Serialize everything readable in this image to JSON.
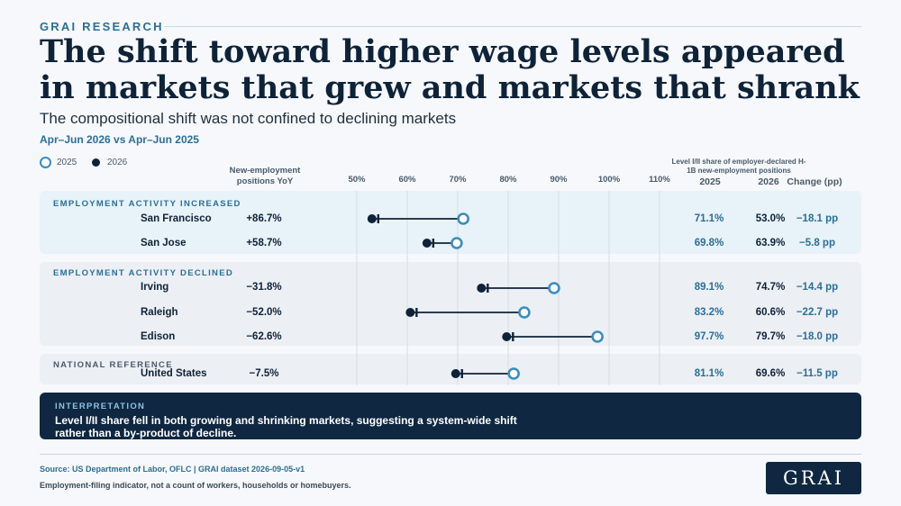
{
  "header": {
    "eyebrow": "GRAI RESEARCH",
    "title": "The shift toward higher wage levels appeared in markets that grew and markets that shrank",
    "subtitle": "The compositional shift was not confined to declining markets",
    "period": "Apr–Jun 2026 vs Apr–Jun 2025"
  },
  "legend": {
    "a": "2025",
    "b": "2026"
  },
  "columns": {
    "yoy": "New-employment positions YoY",
    "share_group": "Level I/II share of employer-declared H-1B new-employment positions",
    "v2025": "2025",
    "v2026": "2026",
    "change": "Change (pp)"
  },
  "sections": {
    "increased": "EMPLOYMENT ACTIVITY INCREASED",
    "declined": "EMPLOYMENT ACTIVITY DECLINED",
    "national": "NATIONAL REFERENCE"
  },
  "rows": [
    {
      "city": "San Francisco",
      "yoy": "+86.7%",
      "v2025": "71.1%",
      "v2026": "53.0%",
      "change": "−18.1 pp"
    },
    {
      "city": "San Jose",
      "yoy": "+58.7%",
      "v2025": "69.8%",
      "v2026": "63.9%",
      "change": "−5.8 pp"
    },
    {
      "city": "Irving",
      "yoy": "−31.8%",
      "v2025": "89.1%",
      "v2026": "74.7%",
      "change": "−14.4 pp"
    },
    {
      "city": "Raleigh",
      "yoy": "−52.0%",
      "v2025": "83.2%",
      "v2026": "60.6%",
      "change": "−22.7 pp"
    },
    {
      "city": "Edison",
      "yoy": "−62.6%",
      "v2025": "97.7%",
      "v2026": "79.7%",
      "change": "−18.0 pp"
    },
    {
      "city": "United States",
      "yoy": "−7.5%",
      "v2025": "81.1%",
      "v2026": "69.6%",
      "change": "−11.5 pp"
    }
  ],
  "interpretation": {
    "label": "INTERPRETATION",
    "text": "Level I/II share fell in both growing and shrinking markets, suggesting a system-wide shift rather than a by-product of decline."
  },
  "footer": {
    "source": "Source: US Department of Labor, OFLC | GRAI dataset 2026-09-05-v1",
    "note": "Employment-filing indicator, not a count of workers, households or homebuyers.",
    "logo": "GRAI"
  },
  "colors": {
    "y2025": "#3a8dbf",
    "y2026": "#0e2238",
    "accent": "#2a6f97"
  },
  "chart_data": {
    "type": "dumbbell",
    "x_ticks": [
      "50%",
      "60%",
      "70%",
      "80%",
      "90%",
      "100%",
      "110%"
    ],
    "xlim": [
      50,
      110
    ],
    "categories": [
      "San Francisco",
      "San Jose",
      "Irving",
      "Raleigh",
      "Edison",
      "United States"
    ],
    "series": [
      {
        "name": "2025",
        "values": [
          71.1,
          69.8,
          89.1,
          83.2,
          97.7,
          81.1
        ]
      },
      {
        "name": "2026",
        "values": [
          53.0,
          63.9,
          74.7,
          60.6,
          79.7,
          69.6
        ]
      }
    ]
  }
}
